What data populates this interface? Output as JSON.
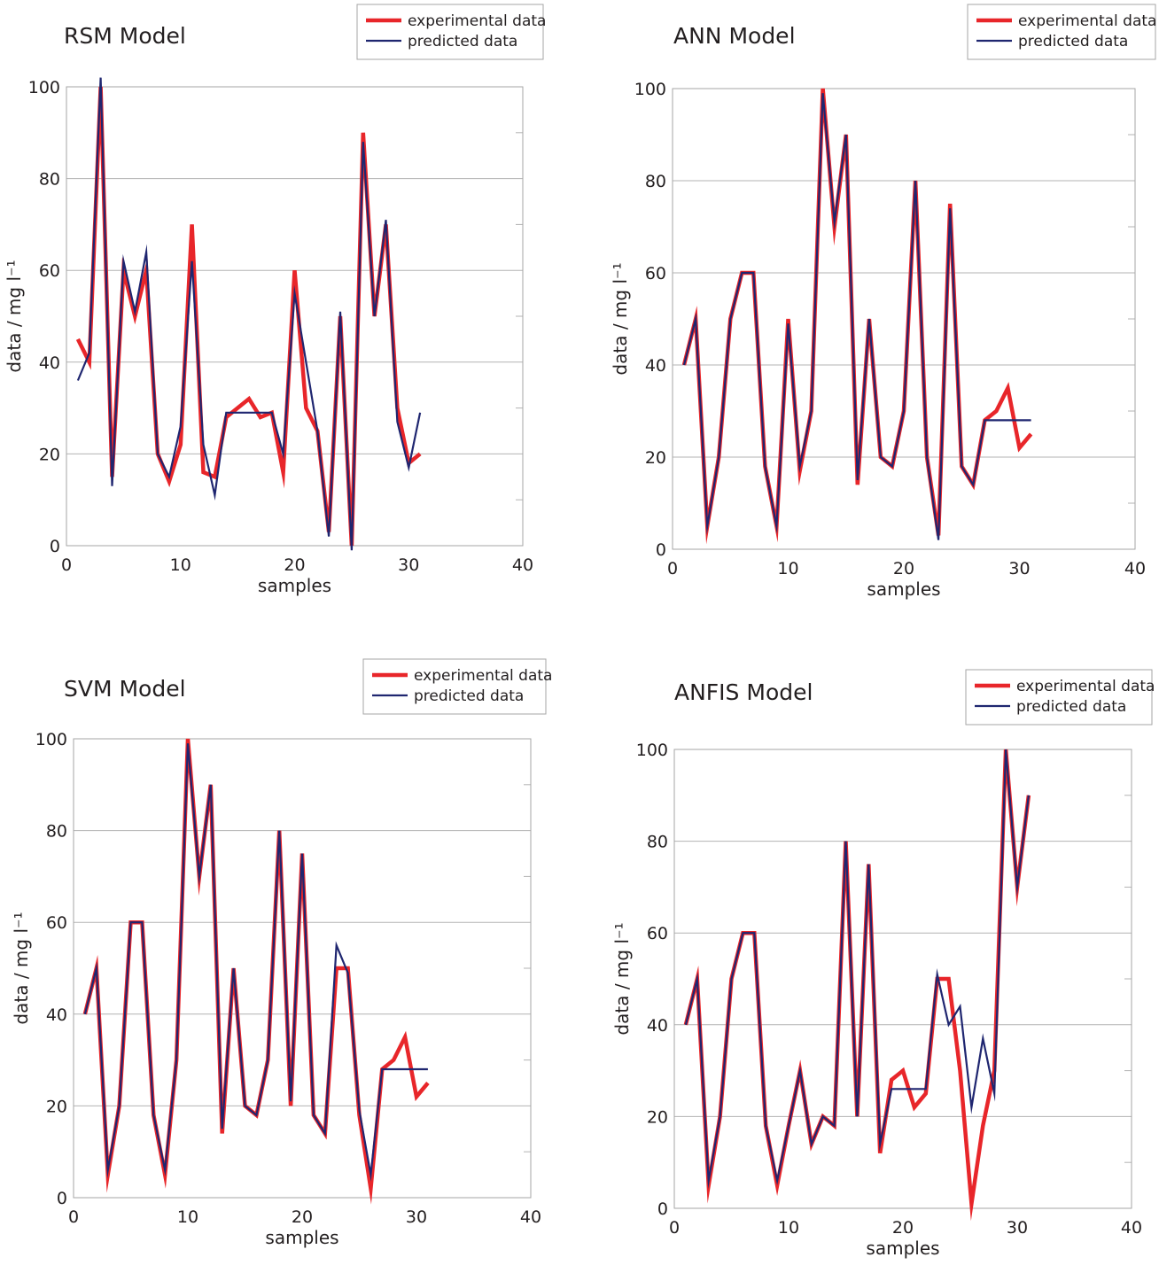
{
  "colors": {
    "experimental": "#e8262a",
    "predicted": "#1f2670",
    "grid": "#b3b3b3",
    "frame": "#a6a6a6"
  },
  "legend": {
    "experimental": "experimental data"
  },
  "chart_data": [
    {
      "type": "line",
      "title": "RSM Model",
      "xlabel": "samples",
      "ylabel": "data / mg l⁻¹",
      "xlim": [
        0,
        40
      ],
      "ylim": [
        0,
        100
      ],
      "xticks": [
        0,
        10,
        20,
        30,
        40
      ],
      "yticks": [
        0,
        20,
        40,
        60,
        80,
        100
      ],
      "legend_labels": [
        "experimental data",
        "predicted  data"
      ],
      "series": [
        {
          "name": "experimental data",
          "x": [
            1,
            2,
            3,
            4,
            5,
            6,
            7,
            8,
            9,
            10,
            11,
            12,
            13,
            14,
            15,
            16,
            17,
            18,
            19,
            20,
            21,
            22,
            23,
            24,
            25,
            26,
            27,
            28,
            29,
            30,
            31
          ],
          "y": [
            45,
            40,
            100,
            15,
            60,
            50,
            60,
            20,
            14,
            22,
            70,
            16,
            15,
            28,
            30,
            32,
            28,
            29,
            16,
            60,
            30,
            25,
            3,
            50,
            0,
            90,
            50,
            70,
            30,
            18,
            20
          ]
        },
        {
          "name": "predicted  data",
          "x": [
            1,
            2,
            3,
            4,
            5,
            6,
            7,
            8,
            9,
            10,
            11,
            12,
            13,
            14,
            15,
            16,
            17,
            18,
            19,
            20,
            21,
            22,
            23,
            24,
            25,
            26,
            27,
            28,
            29,
            30,
            31
          ],
          "y": [
            36,
            42,
            102,
            13,
            62,
            51,
            64,
            20,
            15,
            26,
            62,
            22,
            11,
            29,
            29,
            29,
            29,
            29,
            20,
            55,
            40,
            25,
            2,
            51,
            -1,
            88,
            50,
            71,
            27,
            17,
            29
          ]
        }
      ]
    },
    {
      "type": "line",
      "title": "ANN Model",
      "xlabel": "samples",
      "ylabel": "data / mg l⁻¹",
      "xlim": [
        0,
        40
      ],
      "ylim": [
        0,
        100
      ],
      "xticks": [
        0,
        10,
        20,
        30,
        40
      ],
      "yticks": [
        0,
        20,
        40,
        60,
        80,
        100
      ],
      "legend_labels": [
        "experimental data",
        "predicted  data"
      ],
      "series": [
        {
          "name": "experimental data",
          "x": [
            1,
            2,
            3,
            4,
            5,
            6,
            7,
            8,
            9,
            10,
            11,
            12,
            13,
            14,
            15,
            16,
            17,
            18,
            19,
            20,
            21,
            22,
            23,
            24,
            25,
            26,
            27,
            28,
            29,
            30,
            31
          ],
          "y": [
            40,
            50,
            5,
            20,
            50,
            60,
            60,
            18,
            5,
            50,
            17,
            30,
            100,
            70,
            90,
            14,
            50,
            20,
            18,
            30,
            80,
            20,
            3,
            75,
            18,
            14,
            28,
            30,
            35,
            22,
            25
          ]
        },
        {
          "name": "predicted  data",
          "x": [
            1,
            2,
            3,
            4,
            5,
            6,
            7,
            8,
            9,
            10,
            11,
            12,
            13,
            14,
            15,
            16,
            17,
            18,
            19,
            20,
            21,
            22,
            23,
            24,
            25,
            26,
            27,
            28,
            29,
            30,
            31
          ],
          "y": [
            40,
            50,
            5,
            20,
            50,
            60,
            60,
            18,
            5,
            49,
            18,
            30,
            99,
            71,
            90,
            15,
            50,
            20,
            18,
            30,
            80,
            20,
            2,
            74,
            18,
            14,
            28,
            28,
            28,
            28,
            28
          ]
        }
      ]
    },
    {
      "type": "line",
      "title": "SVM Model",
      "xlabel": "samples",
      "ylabel": "data / mg l⁻¹",
      "xlim": [
        0,
        40
      ],
      "ylim": [
        0,
        100
      ],
      "xticks": [
        0,
        10,
        20,
        30,
        40
      ],
      "yticks": [
        0,
        20,
        40,
        60,
        80,
        100
      ],
      "legend_labels": [
        "experimental data",
        "predicted data"
      ],
      "series": [
        {
          "name": "experimental data",
          "x": [
            1,
            2,
            3,
            4,
            5,
            6,
            7,
            8,
            9,
            10,
            11,
            12,
            13,
            14,
            15,
            16,
            17,
            18,
            19,
            20,
            21,
            22,
            23,
            24,
            25,
            26,
            27,
            28,
            29,
            30,
            31
          ],
          "y": [
            40,
            50,
            5,
            20,
            60,
            60,
            18,
            5,
            30,
            100,
            70,
            90,
            14,
            50,
            20,
            18,
            30,
            80,
            20,
            75,
            18,
            14,
            50,
            50,
            18,
            2,
            28,
            30,
            35,
            22,
            25
          ]
        },
        {
          "name": "predicted data",
          "x": [
            1,
            2,
            3,
            4,
            5,
            6,
            7,
            8,
            9,
            10,
            11,
            12,
            13,
            14,
            15,
            16,
            17,
            18,
            19,
            20,
            21,
            22,
            23,
            24,
            25,
            26,
            27,
            28,
            29,
            30,
            31
          ],
          "y": [
            40,
            50,
            6,
            20,
            60,
            60,
            18,
            6,
            30,
            99,
            70,
            90,
            15,
            50,
            20,
            18,
            30,
            80,
            21,
            75,
            18,
            14,
            55,
            49,
            19,
            5,
            28,
            28,
            28,
            28,
            28
          ]
        }
      ]
    },
    {
      "type": "line",
      "title": "ANFIS Model",
      "xlabel": "samples",
      "ylabel": "data / mg l⁻¹",
      "xlim": [
        0,
        40
      ],
      "ylim": [
        0,
        100
      ],
      "xticks": [
        0,
        10,
        20,
        30,
        40
      ],
      "yticks": [
        0,
        20,
        40,
        60,
        80,
        100
      ],
      "legend_labels": [
        "experimental data",
        "predicted data"
      ],
      "series": [
        {
          "name": "experimental data",
          "x": [
            1,
            2,
            3,
            4,
            5,
            6,
            7,
            8,
            9,
            10,
            11,
            12,
            13,
            14,
            15,
            16,
            17,
            18,
            19,
            20,
            21,
            22,
            23,
            24,
            25,
            26,
            27,
            28,
            29,
            30,
            31
          ],
          "y": [
            40,
            50,
            5,
            20,
            50,
            60,
            60,
            18,
            5,
            18,
            30,
            14,
            20,
            18,
            80,
            20,
            75,
            12,
            28,
            30,
            22,
            25,
            50,
            50,
            30,
            1,
            18,
            30,
            100,
            70,
            90
          ]
        },
        {
          "name": "predicted data",
          "x": [
            1,
            2,
            3,
            4,
            5,
            6,
            7,
            8,
            9,
            10,
            11,
            12,
            13,
            14,
            15,
            16,
            17,
            18,
            19,
            20,
            21,
            22,
            23,
            24,
            25,
            26,
            27,
            28,
            29,
            30,
            31
          ],
          "y": [
            40,
            50,
            6,
            20,
            50,
            60,
            60,
            18,
            6,
            18,
            30,
            14,
            20,
            18,
            80,
            20,
            75,
            14,
            26,
            26,
            26,
            26,
            51,
            40,
            44,
            22,
            37,
            25,
            100,
            70,
            90
          ]
        }
      ]
    }
  ]
}
